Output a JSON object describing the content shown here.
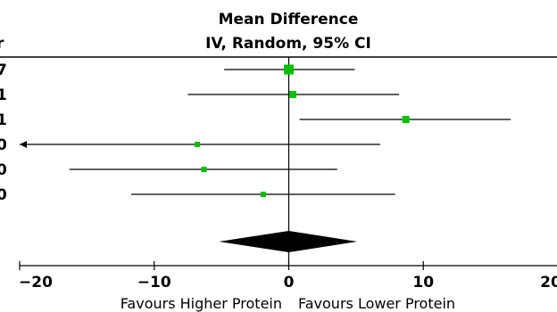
{
  "header": {
    "line1": "Mean Difference",
    "line2": "IV, Random, 95% CI",
    "left_edge_fragment": "r"
  },
  "chart_data": {
    "type": "forest",
    "title": "Mean Difference",
    "subtitle": "IV, Random, 95% CI",
    "xlim": [
      -20,
      20
    ],
    "ticks": [
      -20,
      -10,
      0,
      10,
      20
    ],
    "tick_labels": [
      "−20",
      "−10",
      "0",
      "10",
      "20"
    ],
    "xlabel_left": "Favours Higher Protein",
    "xlabel_right": "Favours Lower Protein",
    "studies": [
      {
        "row_label": "7",
        "md": 0.0,
        "ci": [
          -4.8,
          4.9
        ],
        "weight_class": "large"
      },
      {
        "row_label": "1",
        "md": 0.3,
        "ci": [
          -7.5,
          8.2
        ],
        "weight_class": "medium"
      },
      {
        "row_label": "1",
        "md": 8.7,
        "ci": [
          0.8,
          16.5
        ],
        "weight_class": "medium"
      },
      {
        "row_label": "0",
        "md": -6.8,
        "ci": [
          -20,
          6.8
        ],
        "weight_class": "small",
        "arrow_left": true
      },
      {
        "row_label": "0",
        "md": -6.3,
        "ci": [
          -16.3,
          3.6
        ],
        "weight_class": "small"
      },
      {
        "row_label": "0",
        "md": -1.9,
        "ci": [
          -11.7,
          7.9
        ],
        "weight_class": "small"
      }
    ],
    "pooled": {
      "md": 0.0,
      "ci": [
        -4.0,
        3.9
      ]
    },
    "colors": {
      "marker": "#00c000",
      "line": "#000000",
      "diamond": "#000000"
    }
  }
}
